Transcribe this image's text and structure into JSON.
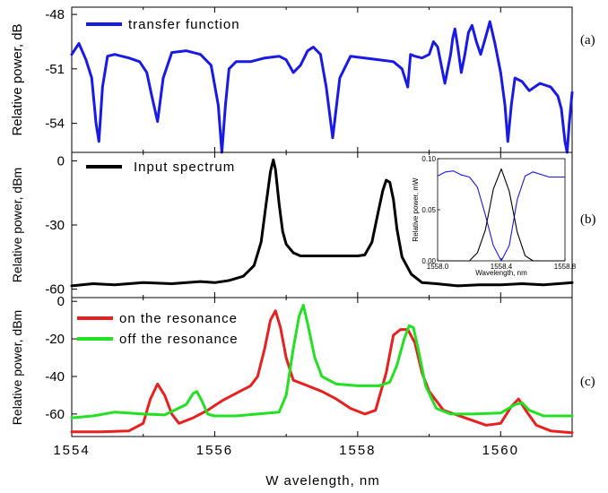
{
  "colors": {
    "transfer": "#1a1ae6",
    "input": "#000000",
    "on_resonance": "#e82020",
    "off_resonance": "#22e022",
    "inset_blue": "#1a1ae6",
    "inset_black": "#000000"
  },
  "chart_data": [
    {
      "id": "a",
      "type": "line",
      "panel_tag": "(a)",
      "ylabel": "Relative power, dB",
      "xlim": [
        1554,
        1561
      ],
      "ylim": [
        -55.6,
        -47.6
      ],
      "yticks": [
        -48,
        -51,
        -54
      ],
      "ytick_labels": [
        "-48",
        "-51",
        "-54"
      ],
      "legend_position": "top-left",
      "series": [
        {
          "name": "transfer function",
          "color_key": "transfer",
          "x": [
            1554.0,
            1554.1,
            1554.2,
            1554.28,
            1554.34,
            1554.38,
            1554.43,
            1554.5,
            1554.6,
            1554.8,
            1554.95,
            1555.05,
            1555.12,
            1555.2,
            1555.28,
            1555.4,
            1555.6,
            1555.8,
            1555.95,
            1556.05,
            1556.1,
            1556.15,
            1556.2,
            1556.3,
            1556.5,
            1556.7,
            1556.9,
            1557.0,
            1557.1,
            1557.2,
            1557.3,
            1557.38,
            1557.48,
            1557.56,
            1557.65,
            1557.75,
            1557.9,
            1558.1,
            1558.3,
            1558.5,
            1558.62,
            1558.7,
            1558.74,
            1558.8,
            1558.9,
            1559.0,
            1559.06,
            1559.12,
            1559.17,
            1559.22,
            1559.26,
            1559.3,
            1559.33,
            1559.36,
            1559.4,
            1559.45,
            1559.5,
            1559.55,
            1559.6,
            1559.66,
            1559.72,
            1559.78,
            1559.85,
            1559.92,
            1560.0,
            1560.06,
            1560.1,
            1560.15,
            1560.2,
            1560.3,
            1560.4,
            1560.55,
            1560.7,
            1560.8,
            1560.85,
            1560.9,
            1560.93,
            1560.96,
            1561.0
          ],
          "y": [
            -50.2,
            -49.6,
            -50.5,
            -51.5,
            -54.0,
            -55.0,
            -52.0,
            -50.3,
            -50.2,
            -50.4,
            -50.6,
            -51.2,
            -52.5,
            -53.9,
            -51.5,
            -50.1,
            -50.0,
            -50.2,
            -50.8,
            -53.0,
            -55.6,
            -53.0,
            -51.0,
            -50.6,
            -50.6,
            -50.4,
            -50.3,
            -50.5,
            -51.2,
            -50.8,
            -50.0,
            -49.8,
            -50.2,
            -52.0,
            -54.8,
            -51.5,
            -50.3,
            -50.4,
            -50.5,
            -50.6,
            -51.0,
            -52.0,
            -50.2,
            -50.3,
            -50.4,
            -50.2,
            -49.5,
            -49.8,
            -50.8,
            -51.8,
            -51.0,
            -50.2,
            -49.3,
            -48.8,
            -49.8,
            -51.2,
            -50.2,
            -49.0,
            -48.6,
            -49.5,
            -50.2,
            -49.4,
            -48.4,
            -49.6,
            -51.2,
            -53.0,
            -55.0,
            -53.0,
            -51.5,
            -51.7,
            -52.2,
            -51.8,
            -52.0,
            -52.5,
            -53.2,
            -55.0,
            -55.6,
            -54.0,
            -52.3
          ]
        }
      ]
    },
    {
      "id": "b",
      "type": "line",
      "panel_tag": "(b)",
      "ylabel": "Relative power, dBm",
      "xlim": [
        1554,
        1561
      ],
      "ylim": [
        -64,
        4
      ],
      "yticks": [
        0,
        -30,
        -60
      ],
      "ytick_labels": [
        "0",
        "-30",
        "-60"
      ],
      "legend_position": "top-left",
      "series": [
        {
          "name": "Input spectrum",
          "color_key": "input",
          "x": [
            1554.0,
            1554.3,
            1554.6,
            1555.0,
            1555.4,
            1555.8,
            1556.0,
            1556.2,
            1556.4,
            1556.55,
            1556.65,
            1556.72,
            1556.78,
            1556.82,
            1556.85,
            1556.9,
            1556.95,
            1557.0,
            1557.1,
            1557.2,
            1557.3,
            1557.5,
            1557.8,
            1558.0,
            1558.1,
            1558.2,
            1558.28,
            1558.35,
            1558.4,
            1558.45,
            1558.5,
            1558.55,
            1558.62,
            1558.75,
            1558.9,
            1559.1,
            1559.4,
            1559.7,
            1560.0,
            1560.3,
            1560.6,
            1561.0
          ],
          "y": [
            -58.5,
            -57.5,
            -58.0,
            -57.0,
            -57.5,
            -56.5,
            -57.0,
            -56.0,
            -54.0,
            -49.0,
            -38.0,
            -20.0,
            -5.0,
            0.5,
            -4.0,
            -20.0,
            -33.0,
            -39.0,
            -43.0,
            -44.5,
            -44.5,
            -44.5,
            -44.5,
            -44.5,
            -44.0,
            -38.0,
            -25.0,
            -14.0,
            -9.0,
            -10.0,
            -18.0,
            -32.0,
            -45.0,
            -53.0,
            -57.0,
            -57.5,
            -58.5,
            -58.0,
            -58.0,
            -57.5,
            -58.0,
            -57.0
          ]
        }
      ]
    },
    {
      "id": "c",
      "type": "line",
      "panel_tag": "(c)",
      "ylabel": "Relative power, dBm",
      "xlabel": "W avelength, nm",
      "xlim": [
        1554,
        1561
      ],
      "ylim": [
        -72,
        2
      ],
      "xticks": [
        1554,
        1556,
        1558,
        1560
      ],
      "xtick_labels": [
        "1554",
        "1556",
        "1558",
        "1560"
      ],
      "yticks": [
        0,
        -20,
        -40,
        -60
      ],
      "ytick_labels": [
        "0",
        "-20",
        "-40",
        "-60"
      ],
      "legend_position": "top-left",
      "series": [
        {
          "name": "on the resonance",
          "color_key": "on_resonance",
          "x": [
            1554.0,
            1554.4,
            1554.8,
            1555.0,
            1555.1,
            1555.2,
            1555.3,
            1555.4,
            1555.5,
            1555.7,
            1555.9,
            1556.1,
            1556.3,
            1556.5,
            1556.6,
            1556.7,
            1556.78,
            1556.85,
            1556.92,
            1557.0,
            1557.1,
            1557.3,
            1557.5,
            1557.7,
            1557.9,
            1558.1,
            1558.25,
            1558.4,
            1558.5,
            1558.6,
            1558.7,
            1558.8,
            1558.9,
            1559.0,
            1559.2,
            1559.5,
            1559.8,
            1560.0,
            1560.15,
            1560.25,
            1560.35,
            1560.5,
            1560.7,
            1561.0
          ],
          "y": [
            -69.5,
            -69.5,
            -69.0,
            -65.0,
            -52.0,
            -44.0,
            -50.0,
            -60.0,
            -65.0,
            -62.0,
            -58.0,
            -53.0,
            -49.0,
            -45.0,
            -40.0,
            -25.0,
            -10.0,
            -5.0,
            -14.0,
            -30.0,
            -42.0,
            -45.0,
            -48.0,
            -52.0,
            -57.0,
            -60.0,
            -58.0,
            -38.0,
            -18.0,
            -15.0,
            -15.0,
            -22.0,
            -38.0,
            -48.0,
            -58.0,
            -62.0,
            -66.0,
            -65.0,
            -56.0,
            -52.0,
            -58.0,
            -66.0,
            -69.0,
            -70.0
          ]
        },
        {
          "name": "off the resonance",
          "color_key": "off_resonance",
          "x": [
            1554.0,
            1554.3,
            1554.6,
            1555.0,
            1555.3,
            1555.6,
            1555.7,
            1555.75,
            1555.82,
            1555.9,
            1556.0,
            1556.3,
            1556.6,
            1556.9,
            1557.0,
            1557.1,
            1557.18,
            1557.24,
            1557.3,
            1557.4,
            1557.5,
            1557.7,
            1558.0,
            1558.3,
            1558.45,
            1558.55,
            1558.65,
            1558.72,
            1558.78,
            1558.85,
            1558.95,
            1559.1,
            1559.3,
            1559.6,
            1560.0,
            1560.2,
            1560.3,
            1560.4,
            1560.6,
            1561.0
          ],
          "y": [
            -62.0,
            -61.0,
            -59.0,
            -60.0,
            -60.5,
            -55.0,
            -49.0,
            -48.0,
            -53.0,
            -60.0,
            -61.0,
            -61.0,
            -60.0,
            -59.0,
            -50.0,
            -25.0,
            -8.0,
            -2.0,
            -12.0,
            -30.0,
            -40.0,
            -44.0,
            -45.0,
            -45.0,
            -43.0,
            -34.0,
            -20.0,
            -13.0,
            -14.0,
            -26.0,
            -45.0,
            -57.0,
            -60.0,
            -60.0,
            -59.5,
            -55.0,
            -54.0,
            -58.0,
            -61.0,
            -61.0
          ]
        }
      ]
    }
  ],
  "inset": {
    "type": "line",
    "ylabel": "Relative power, mW",
    "xlabel": "Wavelength, nm",
    "xlim": [
      1558.0,
      1558.8
    ],
    "ylim": [
      0.0,
      0.1
    ],
    "xticks": [
      1558.0,
      1558.4,
      1558.8
    ],
    "xtick_labels": [
      "1558.0",
      "1558.4",
      "1558.8"
    ],
    "yticks": [
      0.0,
      0.05,
      0.1
    ],
    "ytick_labels": [
      "0.00",
      "0.05",
      "0.10"
    ],
    "series": [
      {
        "color_key": "inset_blue",
        "x": [
          1558.0,
          1558.05,
          1558.1,
          1558.15,
          1558.2,
          1558.25,
          1558.3,
          1558.35,
          1558.4,
          1558.45,
          1558.5,
          1558.55,
          1558.6,
          1558.7,
          1558.8
        ],
        "y": [
          0.083,
          0.087,
          0.088,
          0.084,
          0.082,
          0.072,
          0.045,
          0.015,
          0.0,
          0.015,
          0.06,
          0.083,
          0.087,
          0.082,
          0.082
        ]
      },
      {
        "color_key": "inset_black",
        "x": [
          1558.0,
          1558.2,
          1558.25,
          1558.3,
          1558.35,
          1558.4,
          1558.45,
          1558.5,
          1558.55,
          1558.6,
          1558.8
        ],
        "y": [
          0.0,
          0.0,
          0.008,
          0.03,
          0.07,
          0.09,
          0.068,
          0.028,
          0.005,
          0.0,
          0.0
        ]
      }
    ]
  }
}
